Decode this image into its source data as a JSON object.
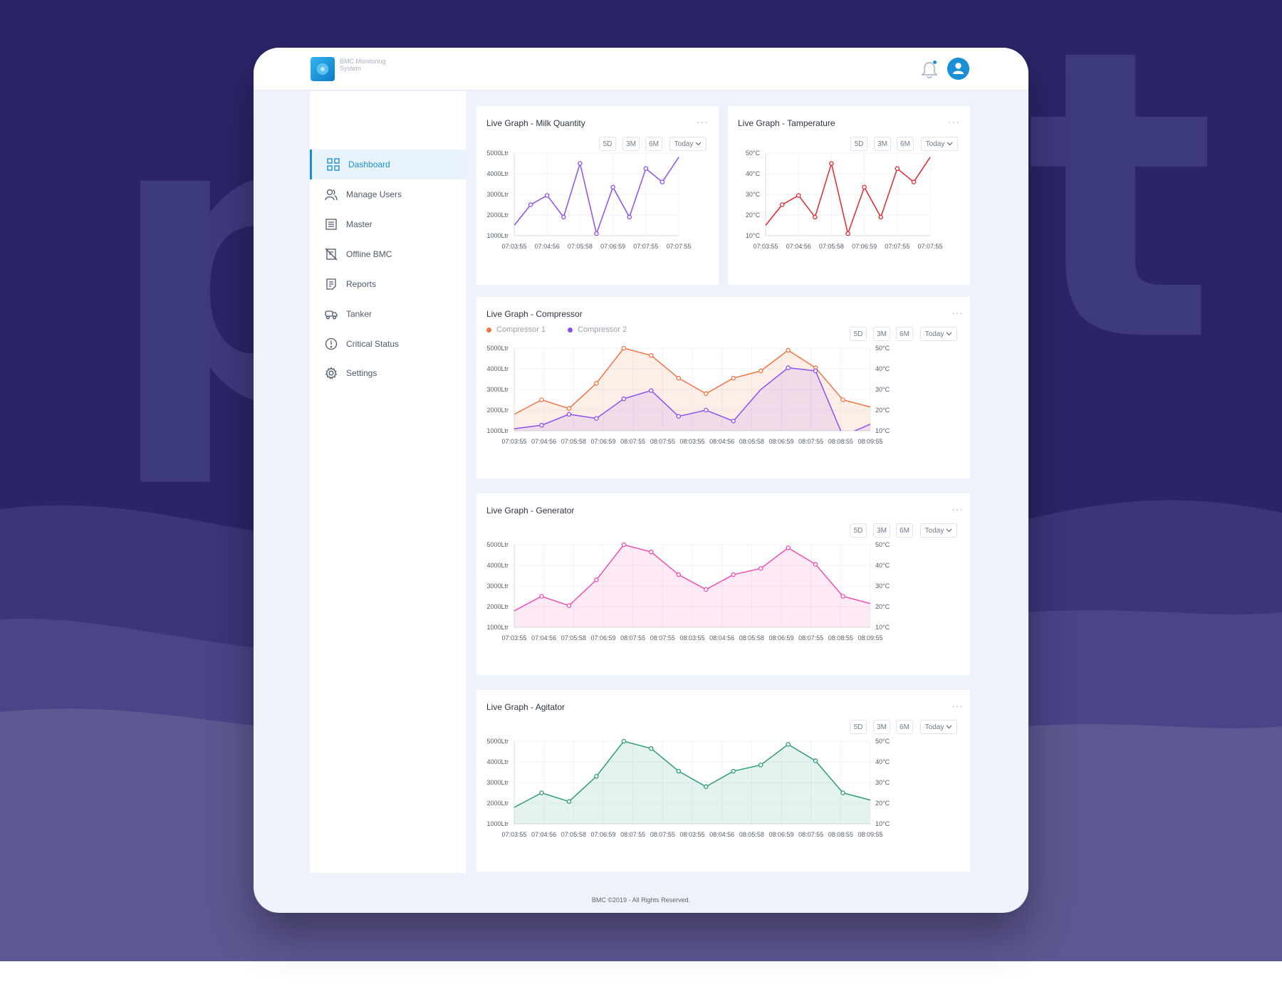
{
  "brand": {
    "name": "BMC Monitoring System"
  },
  "nav": [
    {
      "label": "Dashboard",
      "icon": "dashboard-icon",
      "active": true
    },
    {
      "label": "Manage Users",
      "icon": "users-icon"
    },
    {
      "label": "Master",
      "icon": "master-list-icon"
    },
    {
      "label": "Offline BMC",
      "icon": "offline-icon"
    },
    {
      "label": "Reports",
      "icon": "reports-icon"
    },
    {
      "label": "Tanker",
      "icon": "tanker-icon"
    },
    {
      "label": "Critical Status",
      "icon": "alert-icon"
    },
    {
      "label": "Settings",
      "icon": "gear-icon"
    }
  ],
  "range_buttons": [
    "5D",
    "3M",
    "6M"
  ],
  "range_select": "Today",
  "menu_glyph": "···",
  "footer": "BMC ©2019 - All Rights Reserved.",
  "colors": {
    "accent": "#1b8fd6",
    "milk": "#8c4ff2",
    "temperature": "#e8252f",
    "compressor1": "#f47344",
    "compressor2": "#8c4ff2",
    "generator": "#ee4fae",
    "agitator": "#2c9b78"
  },
  "chart_data": [
    {
      "id": "milk",
      "type": "line",
      "title": "Live Graph - Milk Quantity",
      "y_ticks": [
        "5000Ltr",
        "4000Ltr",
        "3000Ltr",
        "2000Ltr",
        "1000Ltr"
      ],
      "x_labels": [
        "07:03:55",
        "07:04:56",
        "07:05:58",
        "07:06:59",
        "07:07:55",
        "07:07:55"
      ],
      "ylim": [
        1000,
        5000
      ],
      "series": [
        {
          "values": [
            1500,
            2500,
            2950,
            1900,
            4500,
            1100,
            3350,
            1900,
            4250,
            3600,
            4800
          ],
          "markers": [
            false,
            true,
            true,
            true,
            true,
            true,
            true,
            true,
            true,
            true,
            false
          ]
        }
      ]
    },
    {
      "id": "temp",
      "type": "line",
      "title": "Live Graph - Tamperature",
      "y_ticks": [
        "50°C",
        "40°C",
        "30°C",
        "20°C",
        "10°C"
      ],
      "x_labels": [
        "07:03:55",
        "07:04:56",
        "07:05:58",
        "07:06:59",
        "07:07:55",
        "07:07:55"
      ],
      "ylim": [
        10,
        50
      ],
      "series": [
        {
          "values": [
            15,
            25,
            29.5,
            19,
            45,
            11,
            33.5,
            19,
            42.5,
            36,
            48
          ],
          "markers": [
            false,
            true,
            true,
            true,
            true,
            true,
            true,
            true,
            true,
            true,
            false
          ]
        }
      ]
    },
    {
      "id": "compressor",
      "type": "area",
      "title": "Live Graph - Compressor",
      "y_ticks": [
        "5000Ltr",
        "4000Ltr",
        "3000Ltr",
        "2000Ltr",
        "1000Ltr"
      ],
      "y2_ticks": [
        "50°C",
        "40°C",
        "30°C",
        "20°C",
        "10°C"
      ],
      "x_labels": [
        "07:03:55",
        "07:04:56",
        "07:05:58",
        "07:06:59",
        "08:07:55",
        "08:07:55",
        "08:03:55",
        "08:04:56",
        "08:05:58",
        "08:06:59",
        "08:07:55",
        "08:08:55",
        "08:09:55"
      ],
      "ylim": [
        1000,
        5000
      ],
      "series": [
        {
          "name": "Compressor 1",
          "values": [
            1800,
            2500,
            2080,
            3300,
            5000,
            4650,
            3550,
            2800,
            3550,
            3900,
            4900,
            4050,
            2500,
            2150
          ],
          "markers": [
            false,
            true,
            true,
            true,
            true,
            true,
            true,
            true,
            true,
            true,
            true,
            true,
            true,
            false
          ]
        },
        {
          "name": "Compressor 2",
          "values": [
            1100,
            1270,
            1800,
            1600,
            2550,
            2950,
            1700,
            2000,
            1470,
            3000,
            4050,
            3900,
            750,
            1320
          ],
          "markers": [
            false,
            true,
            true,
            true,
            true,
            true,
            true,
            true,
            true,
            false,
            true,
            true,
            false,
            false
          ]
        }
      ]
    },
    {
      "id": "generator",
      "type": "area",
      "title": "Live Graph - Generator",
      "y_ticks": [
        "5000Ltr",
        "4000Ltr",
        "3000Ltr",
        "2000Ltr",
        "1000Ltr"
      ],
      "y2_ticks": [
        "50°C",
        "40°C",
        "30°C",
        "20°C",
        "10°C"
      ],
      "x_labels": [
        "07:03:55",
        "07:04:56",
        "07:05:58",
        "07:06:59",
        "08:07:55",
        "08:07:55",
        "08:03:55",
        "08:04:56",
        "08:05:58",
        "08:06:59",
        "08:07:55",
        "08:08:55",
        "08:09:55"
      ],
      "ylim": [
        1000,
        5000
      ],
      "series": [
        {
          "values": [
            1800,
            2500,
            2050,
            3300,
            5000,
            4650,
            3550,
            2830,
            3550,
            3850,
            4850,
            4050,
            2500,
            2150
          ],
          "markers": [
            false,
            true,
            true,
            true,
            true,
            true,
            true,
            true,
            true,
            true,
            true,
            true,
            true,
            false
          ]
        }
      ]
    },
    {
      "id": "agitator",
      "type": "area",
      "title": "Live Graph - Agitator",
      "y_ticks": [
        "5000Ltr",
        "4000Ltr",
        "3000Ltr",
        "2000Ltr",
        "1000Ltr"
      ],
      "y2_ticks": [
        "50°C",
        "40°C",
        "30°C",
        "20°C",
        "10°C"
      ],
      "x_labels": [
        "07:03:55",
        "07:04:56",
        "07:05:58",
        "07:06:59",
        "08:07:55",
        "08:07:55",
        "08:03:55",
        "08:04:56",
        "08:05:58",
        "08:06:59",
        "08:07:55",
        "08:08:55",
        "08:09:55"
      ],
      "ylim": [
        1000,
        5000
      ],
      "series": [
        {
          "values": [
            1800,
            2500,
            2080,
            3300,
            5000,
            4650,
            3550,
            2800,
            3550,
            3850,
            4850,
            4050,
            2500,
            2150
          ],
          "markers": [
            false,
            true,
            true,
            true,
            true,
            true,
            true,
            true,
            true,
            true,
            true,
            true,
            true,
            false
          ]
        }
      ]
    }
  ]
}
